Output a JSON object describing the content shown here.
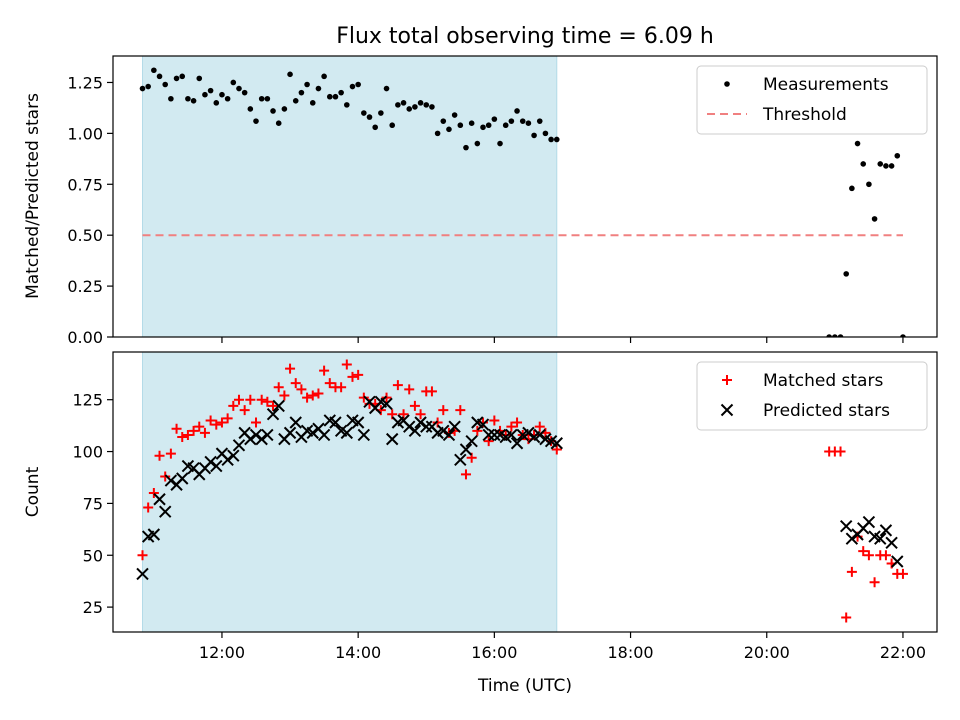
{
  "chart_data": [
    {
      "type": "scatter",
      "title": "Flux total observing time = 6.09 h",
      "ylabel": "Matched/Predicted stars",
      "xlabel": "",
      "xlim": [
        "10:24",
        "22:30"
      ],
      "ylim": [
        0,
        1.38
      ],
      "yticks": [
        "0.00",
        "0.25",
        "0.50",
        "0.75",
        "1.00",
        "1.25"
      ],
      "xticks": [
        "12:00",
        "14:00",
        "16:00",
        "18:00",
        "20:00",
        "22:00"
      ],
      "xticklabels_visible": false,
      "shaded_span": [
        "10:50",
        "16:55"
      ],
      "shaded_color": "#add8e6",
      "legend": {
        "position": "top-right",
        "entries": [
          "Measurements",
          "Threshold"
        ]
      },
      "series": [
        {
          "name": "Measurements",
          "marker": "dot",
          "color": "#000000",
          "x": [
            "10:50",
            "10:55",
            "11:00",
            "11:05",
            "11:10",
            "11:15",
            "11:20",
            "11:25",
            "11:30",
            "11:35",
            "11:40",
            "11:45",
            "11:50",
            "11:55",
            "12:00",
            "12:05",
            "12:10",
            "12:15",
            "12:20",
            "12:25",
            "12:30",
            "12:35",
            "12:40",
            "12:45",
            "12:50",
            "12:55",
            "13:00",
            "13:05",
            "13:10",
            "13:15",
            "13:20",
            "13:25",
            "13:30",
            "13:35",
            "13:40",
            "13:45",
            "13:50",
            "13:55",
            "14:00",
            "14:05",
            "14:10",
            "14:15",
            "14:20",
            "14:25",
            "14:30",
            "14:35",
            "14:40",
            "14:45",
            "14:50",
            "14:55",
            "15:00",
            "15:05",
            "15:10",
            "15:15",
            "15:20",
            "15:25",
            "15:30",
            "15:35",
            "15:40",
            "15:45",
            "15:50",
            "15:55",
            "16:00",
            "16:05",
            "16:10",
            "16:15",
            "16:20",
            "16:25",
            "16:30",
            "16:35",
            "16:40",
            "16:45",
            "16:50",
            "16:55",
            "20:55",
            "21:00",
            "21:05",
            "21:10",
            "21:15",
            "21:20",
            "21:25",
            "21:30",
            "21:35",
            "21:40",
            "21:45",
            "21:50",
            "21:55",
            "22:00"
          ],
          "y": [
            1.22,
            1.23,
            1.31,
            1.28,
            1.24,
            1.17,
            1.27,
            1.28,
            1.17,
            1.16,
            1.27,
            1.19,
            1.21,
            1.15,
            1.19,
            1.17,
            1.25,
            1.22,
            1.2,
            1.12,
            1.06,
            1.17,
            1.17,
            1.11,
            1.05,
            1.12,
            1.29,
            1.16,
            1.2,
            1.24,
            1.15,
            1.22,
            1.28,
            1.18,
            1.18,
            1.2,
            1.14,
            1.23,
            1.24,
            1.1,
            1.08,
            1.03,
            1.1,
            1.22,
            1.04,
            1.14,
            1.15,
            1.12,
            1.13,
            1.15,
            1.14,
            1.13,
            1.0,
            1.06,
            1.02,
            1.09,
            1.04,
            0.93,
            1.05,
            0.95,
            1.03,
            1.04,
            1.07,
            0.95,
            1.04,
            1.06,
            1.11,
            1.06,
            1.05,
            0.99,
            1.06,
            1.0,
            0.97,
            0.97,
            0.0,
            0.0,
            0.0,
            0.31,
            0.73,
            0.95,
            0.85,
            0.75,
            0.58,
            0.85,
            0.84,
            0.84,
            0.89,
            0.0
          ]
        },
        {
          "name": "Threshold",
          "marker": "dashed-line",
          "color": "#f08080",
          "x": [
            "10:50",
            "22:00"
          ],
          "y": [
            0.5,
            0.5
          ]
        }
      ]
    },
    {
      "type": "scatter",
      "title": "",
      "ylabel": "Count",
      "xlabel": "Time (UTC)",
      "xlim": [
        "10:24",
        "22:30"
      ],
      "ylim": [
        13,
        148
      ],
      "yticks": [
        "25",
        "50",
        "75",
        "100",
        "125"
      ],
      "xticks": [
        "12:00",
        "14:00",
        "16:00",
        "18:00",
        "20:00",
        "22:00"
      ],
      "shaded_span": [
        "10:50",
        "16:55"
      ],
      "shaded_color": "#add8e6",
      "legend": {
        "position": "top-right",
        "entries": [
          "Matched stars",
          "Predicted stars"
        ]
      },
      "series": [
        {
          "name": "Matched stars",
          "marker": "plus",
          "color": "#ff0000",
          "x": [
            "10:50",
            "10:55",
            "11:00",
            "11:05",
            "11:10",
            "11:15",
            "11:20",
            "11:25",
            "11:30",
            "11:35",
            "11:40",
            "11:45",
            "11:50",
            "11:55",
            "12:00",
            "12:05",
            "12:10",
            "12:15",
            "12:20",
            "12:25",
            "12:30",
            "12:35",
            "12:40",
            "12:45",
            "12:50",
            "12:55",
            "13:00",
            "13:05",
            "13:10",
            "13:15",
            "13:20",
            "13:25",
            "13:30",
            "13:35",
            "13:40",
            "13:45",
            "13:50",
            "13:55",
            "14:00",
            "14:05",
            "14:10",
            "14:15",
            "14:20",
            "14:25",
            "14:30",
            "14:35",
            "14:40",
            "14:45",
            "14:50",
            "14:55",
            "15:00",
            "15:05",
            "15:10",
            "15:15",
            "15:20",
            "15:25",
            "15:30",
            "15:35",
            "15:40",
            "15:45",
            "15:50",
            "15:55",
            "16:00",
            "16:05",
            "16:10",
            "16:15",
            "16:20",
            "16:25",
            "16:30",
            "16:35",
            "16:40",
            "16:45",
            "16:50",
            "16:55",
            "20:55",
            "21:00",
            "21:05",
            "21:10",
            "21:15",
            "21:20",
            "21:25",
            "21:30",
            "21:35",
            "21:40",
            "21:45",
            "21:50",
            "21:55",
            "22:00"
          ],
          "y": [
            50,
            73,
            80,
            98,
            88,
            99,
            111,
            107,
            108,
            110,
            112,
            109,
            115,
            113,
            114,
            116,
            122,
            125,
            120,
            125,
            114,
            125,
            124,
            122,
            131,
            127,
            140,
            133,
            130,
            126,
            127,
            128,
            139,
            133,
            131,
            131,
            142,
            136,
            137,
            126,
            123,
            123,
            120,
            126,
            118,
            132,
            118,
            130,
            122,
            118,
            129,
            129,
            114,
            120,
            109,
            110,
            120,
            89,
            97,
            110,
            114,
            105,
            115,
            110,
            108,
            112,
            114,
            108,
            106,
            108,
            112,
            109,
            105,
            101,
            100,
            100,
            100,
            20,
            42,
            59,
            52,
            50,
            37,
            50,
            50,
            46,
            41,
            41
          ]
        },
        {
          "name": "Predicted stars",
          "marker": "x",
          "color": "#000000",
          "x": [
            "10:50",
            "10:55",
            "11:00",
            "11:05",
            "11:10",
            "11:15",
            "11:20",
            "11:25",
            "11:30",
            "11:35",
            "11:40",
            "11:45",
            "11:50",
            "11:55",
            "12:00",
            "12:05",
            "12:10",
            "12:15",
            "12:20",
            "12:25",
            "12:30",
            "12:35",
            "12:40",
            "12:45",
            "12:50",
            "12:55",
            "13:00",
            "13:05",
            "13:10",
            "13:15",
            "13:20",
            "13:25",
            "13:30",
            "13:35",
            "13:40",
            "13:45",
            "13:50",
            "13:55",
            "14:00",
            "14:05",
            "14:10",
            "14:15",
            "14:20",
            "14:25",
            "14:30",
            "14:35",
            "14:40",
            "14:45",
            "14:50",
            "14:55",
            "15:00",
            "15:05",
            "15:10",
            "15:15",
            "15:20",
            "15:25",
            "15:30",
            "15:35",
            "15:40",
            "15:45",
            "15:50",
            "15:55",
            "16:00",
            "16:05",
            "16:10",
            "16:15",
            "16:20",
            "16:25",
            "16:30",
            "16:35",
            "16:40",
            "16:45",
            "16:50",
            "16:55",
            "21:10",
            "21:15",
            "21:20",
            "21:25",
            "21:30",
            "21:35",
            "21:40",
            "21:45",
            "21:50",
            "21:55"
          ],
          "y": [
            41,
            59,
            60,
            77,
            71,
            86,
            84,
            87,
            93,
            92,
            89,
            92,
            95,
            93,
            99,
            96,
            98,
            103,
            109,
            106,
            108,
            106,
            108,
            118,
            122,
            106,
            109,
            114,
            107,
            110,
            109,
            111,
            108,
            115,
            114,
            110,
            109,
            115,
            114,
            108,
            124,
            121,
            124,
            123,
            106,
            114,
            115,
            112,
            110,
            114,
            112,
            112,
            109,
            110,
            108,
            112,
            96,
            101,
            105,
            114,
            113,
            108,
            108,
            108,
            107,
            108,
            104,
            108,
            109,
            107,
            108,
            106,
            105,
            104,
            64,
            58,
            60,
            63,
            66,
            59,
            58,
            62,
            56,
            47
          ]
        }
      ]
    }
  ]
}
